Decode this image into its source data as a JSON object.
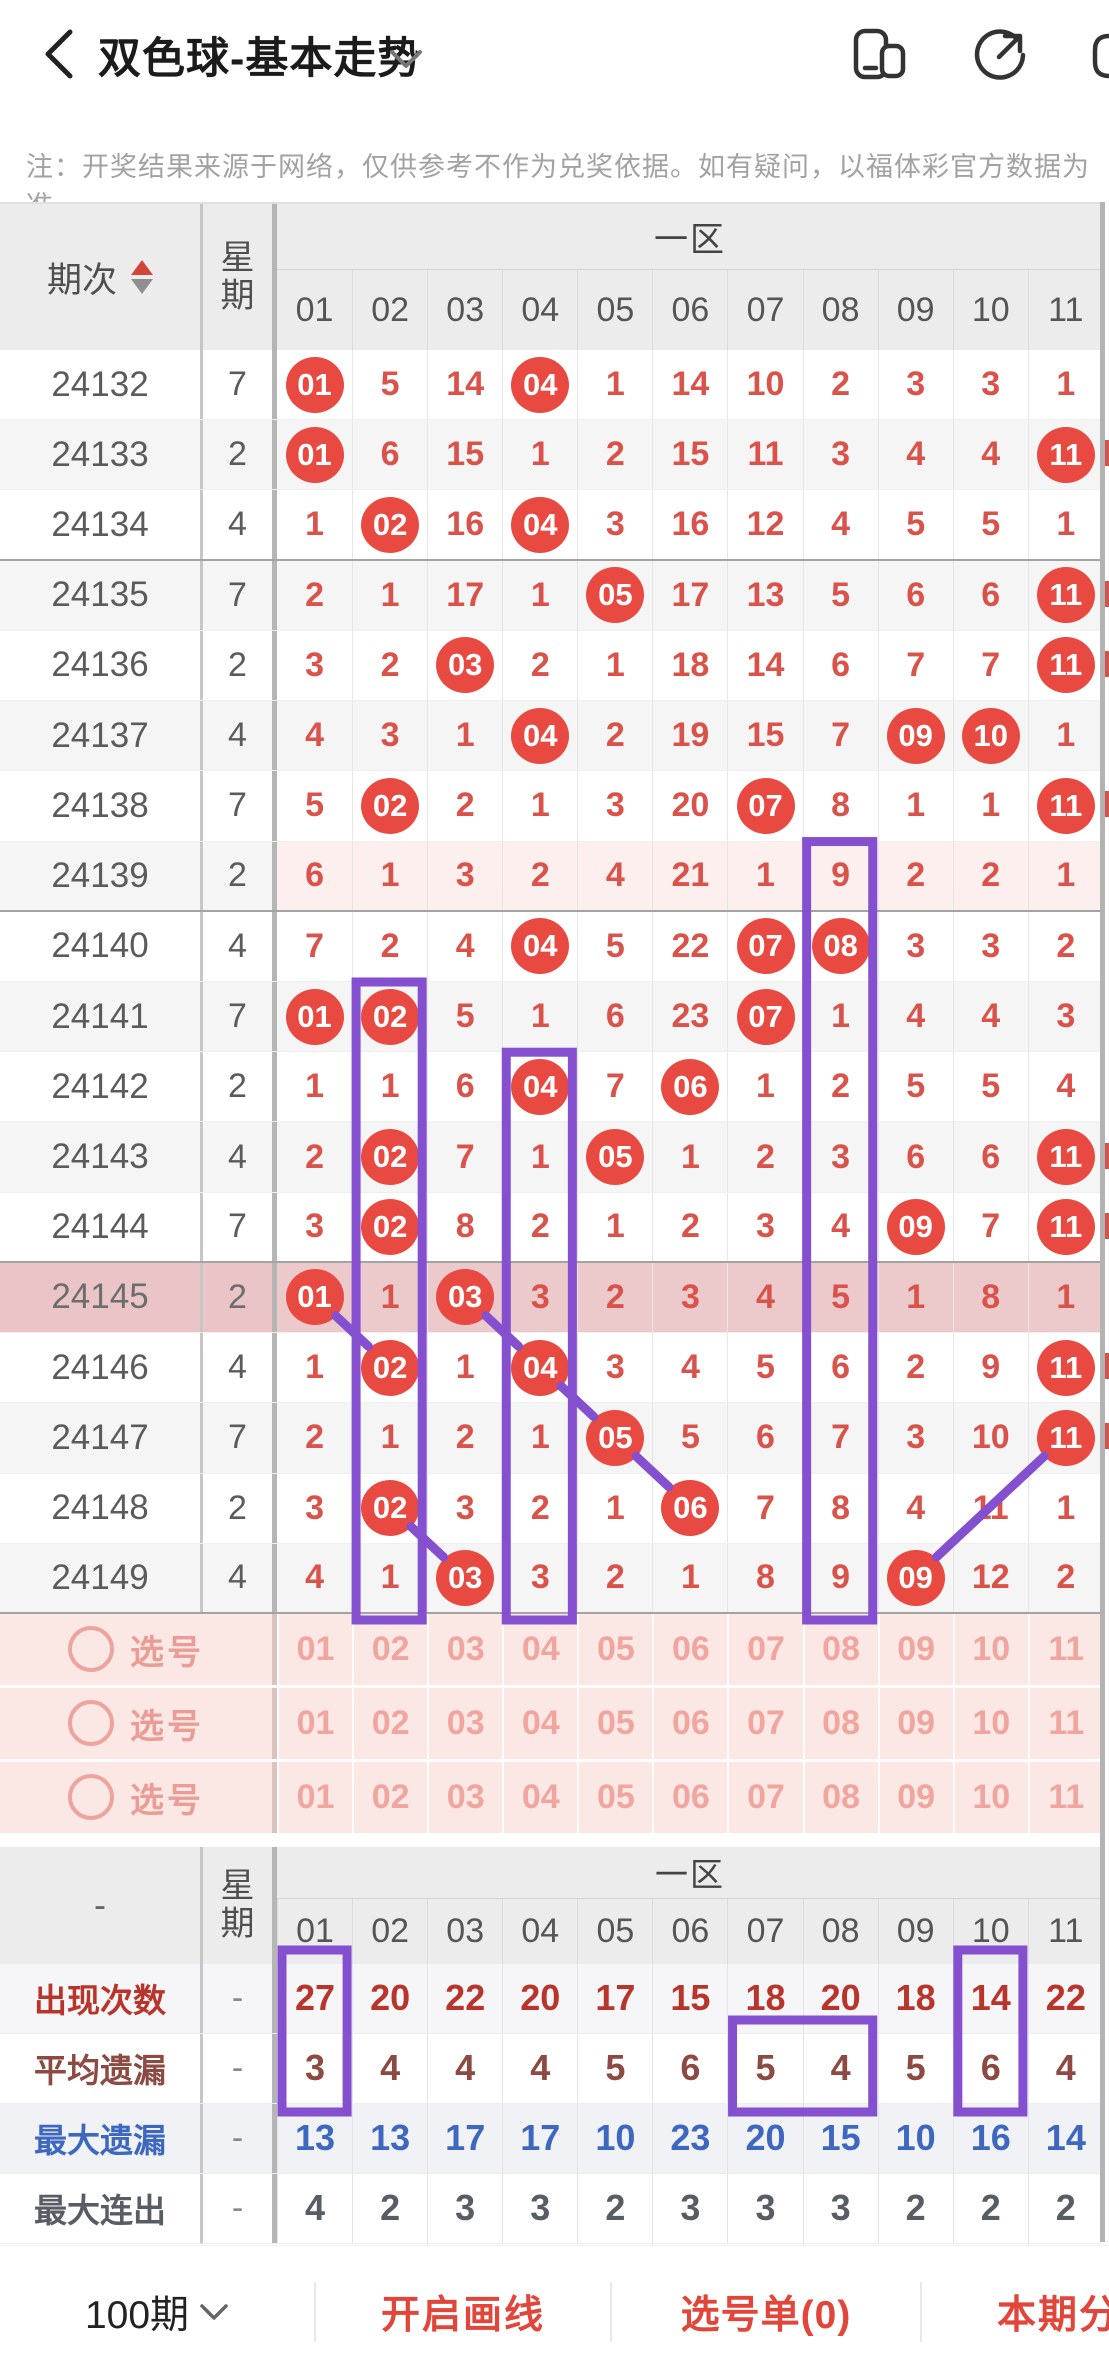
{
  "header": {
    "title": "双色球-基本走势",
    "back_icon": "back-chevron",
    "dropdown_icon": "chevron-down",
    "icons": [
      "floating-window-icon",
      "share-icon",
      "partial-icon"
    ]
  },
  "notice": "注：开奖结果来源于网络，仅供参考不作为兑奖依据。如有疑问，以福体彩官方数据为准。",
  "trend_table": {
    "headers": {
      "period": "期次",
      "week": "星期",
      "zone": "一区"
    },
    "numbers": [
      "01",
      "02",
      "03",
      "04",
      "05",
      "06",
      "07",
      "08",
      "09",
      "10",
      "11"
    ],
    "rows": [
      {
        "period": "24132",
        "week": "7",
        "values": [
          "01",
          "5",
          "14",
          "04",
          "1",
          "14",
          "10",
          "2",
          "3",
          "3",
          "1"
        ],
        "circled": [
          1,
          4
        ],
        "highlight": ""
      },
      {
        "period": "24133",
        "week": "2",
        "values": [
          "01",
          "6",
          "15",
          "1",
          "2",
          "15",
          "11",
          "3",
          "4",
          "4",
          "11"
        ],
        "circled": [
          1,
          11
        ],
        "highlight": ""
      },
      {
        "period": "24134",
        "week": "4",
        "values": [
          "1",
          "02",
          "16",
          "04",
          "3",
          "16",
          "12",
          "4",
          "5",
          "5",
          "1"
        ],
        "circled": [
          2,
          4
        ],
        "highlight": ""
      },
      {
        "period": "24135",
        "week": "7",
        "values": [
          "2",
          "1",
          "17",
          "1",
          "05",
          "17",
          "13",
          "5",
          "6",
          "6",
          "11"
        ],
        "circled": [
          5,
          11
        ],
        "highlight": ""
      },
      {
        "period": "24136",
        "week": "2",
        "values": [
          "3",
          "2",
          "03",
          "2",
          "1",
          "18",
          "14",
          "6",
          "7",
          "7",
          "11"
        ],
        "circled": [
          3,
          11
        ],
        "highlight": ""
      },
      {
        "period": "24137",
        "week": "4",
        "values": [
          "4",
          "3",
          "1",
          "04",
          "2",
          "19",
          "15",
          "7",
          "09",
          "10",
          "1"
        ],
        "circled": [
          4,
          9,
          10
        ],
        "highlight": ""
      },
      {
        "period": "24138",
        "week": "7",
        "values": [
          "5",
          "02",
          "2",
          "1",
          "3",
          "20",
          "07",
          "8",
          "1",
          "1",
          "11"
        ],
        "circled": [
          2,
          7,
          11
        ],
        "highlight": ""
      },
      {
        "period": "24139",
        "week": "2",
        "values": [
          "6",
          "1",
          "3",
          "2",
          "4",
          "21",
          "1",
          "9",
          "2",
          "2",
          "1"
        ],
        "circled": [],
        "highlight": "light"
      },
      {
        "period": "24140",
        "week": "4",
        "values": [
          "7",
          "2",
          "4",
          "04",
          "5",
          "22",
          "07",
          "08",
          "3",
          "3",
          "2"
        ],
        "circled": [
          4,
          7,
          8
        ],
        "highlight": ""
      },
      {
        "period": "24141",
        "week": "7",
        "values": [
          "01",
          "02",
          "5",
          "1",
          "6",
          "23",
          "07",
          "1",
          "4",
          "4",
          "3"
        ],
        "circled": [
          1,
          2,
          7
        ],
        "highlight": ""
      },
      {
        "period": "24142",
        "week": "2",
        "values": [
          "1",
          "1",
          "6",
          "04",
          "7",
          "06",
          "1",
          "2",
          "5",
          "5",
          "4"
        ],
        "circled": [
          4,
          6
        ],
        "highlight": ""
      },
      {
        "period": "24143",
        "week": "4",
        "values": [
          "2",
          "02",
          "7",
          "1",
          "05",
          "1",
          "2",
          "3",
          "6",
          "6",
          "11"
        ],
        "circled": [
          2,
          5,
          11
        ],
        "highlight": ""
      },
      {
        "period": "24144",
        "week": "7",
        "values": [
          "3",
          "02",
          "8",
          "2",
          "1",
          "2",
          "3",
          "4",
          "09",
          "7",
          "11"
        ],
        "circled": [
          2,
          9,
          11
        ],
        "highlight": ""
      },
      {
        "period": "24145",
        "week": "2",
        "values": [
          "01",
          "1",
          "03",
          "3",
          "2",
          "3",
          "4",
          "5",
          "1",
          "8",
          "1"
        ],
        "circled": [
          1,
          3
        ],
        "highlight": "strong"
      },
      {
        "period": "24146",
        "week": "4",
        "values": [
          "1",
          "02",
          "1",
          "04",
          "3",
          "4",
          "5",
          "6",
          "2",
          "9",
          "11"
        ],
        "circled": [
          2,
          4,
          11
        ],
        "highlight": ""
      },
      {
        "period": "24147",
        "week": "7",
        "values": [
          "2",
          "1",
          "2",
          "1",
          "05",
          "5",
          "6",
          "7",
          "3",
          "10",
          "11"
        ],
        "circled": [
          5,
          11
        ],
        "highlight": ""
      },
      {
        "period": "24148",
        "week": "2",
        "values": [
          "3",
          "02",
          "3",
          "2",
          "1",
          "06",
          "7",
          "8",
          "4",
          "11",
          "1"
        ],
        "circled": [
          2,
          6
        ],
        "highlight": ""
      },
      {
        "period": "24149",
        "week": "4",
        "values": [
          "4",
          "1",
          "03",
          "3",
          "2",
          "1",
          "8",
          "9",
          "09",
          "12",
          "2"
        ],
        "circled": [
          3,
          9
        ],
        "highlight": ""
      }
    ],
    "select_rows": [
      {
        "label": "选号",
        "numbers": [
          "01",
          "02",
          "03",
          "04",
          "05",
          "06",
          "07",
          "08",
          "09",
          "10",
          "11"
        ]
      },
      {
        "label": "选号",
        "numbers": [
          "01",
          "02",
          "03",
          "04",
          "05",
          "06",
          "07",
          "08",
          "09",
          "10",
          "11"
        ]
      },
      {
        "label": "选号",
        "numbers": [
          "01",
          "02",
          "03",
          "04",
          "05",
          "06",
          "07",
          "08",
          "09",
          "10",
          "11"
        ]
      }
    ]
  },
  "stats_table": {
    "corner": "-",
    "week_label": "星期",
    "zone": "一区",
    "numbers": [
      "01",
      "02",
      "03",
      "04",
      "05",
      "06",
      "07",
      "08",
      "09",
      "10",
      "11"
    ],
    "rows": [
      {
        "label": "出现次数",
        "week": "-",
        "values": [
          "27",
          "20",
          "22",
          "20",
          "17",
          "15",
          "18",
          "20",
          "18",
          "14",
          "22"
        ],
        "color": "#b8352b",
        "bg": "#f6f6f9"
      },
      {
        "label": "平均遗漏",
        "week": "-",
        "values": [
          "3",
          "4",
          "4",
          "4",
          "5",
          "6",
          "5",
          "4",
          "5",
          "6",
          "4"
        ],
        "color": "#8d4a42",
        "bg": "#ffffff"
      },
      {
        "label": "最大遗漏",
        "week": "-",
        "values": [
          "13",
          "13",
          "17",
          "17",
          "10",
          "23",
          "20",
          "15",
          "10",
          "16",
          "14"
        ],
        "color": "#3e68c0",
        "bg": "#f1f2f6"
      },
      {
        "label": "最大连出",
        "week": "-",
        "values": [
          "4",
          "2",
          "3",
          "3",
          "2",
          "3",
          "3",
          "3",
          "2",
          "2",
          "2"
        ],
        "color": "#585c64",
        "bg": "#ffffff"
      }
    ]
  },
  "annotations": {
    "color": "#8450cf",
    "column_boxes": [
      {
        "column": "02",
        "start_period": "24141"
      },
      {
        "column": "04",
        "start_period": "24142"
      },
      {
        "column": "08",
        "start_period": "24139"
      }
    ],
    "connect_lines": [
      {
        "from_period": "24145",
        "from_col": "01",
        "to_period": "24146",
        "to_col": "02"
      },
      {
        "from_period": "24145",
        "from_col": "03",
        "to_period": "24146",
        "to_col": "04"
      },
      {
        "from_period": "24146",
        "from_col": "04",
        "to_period": "24147",
        "to_col": "05"
      },
      {
        "from_period": "24147",
        "from_col": "05",
        "to_period": "24148",
        "to_col": "06"
      },
      {
        "from_period": "24148",
        "from_col": "02",
        "to_period": "24149",
        "to_col": "03"
      },
      {
        "from_period": "24149",
        "from_col": "09",
        "to_period": "24147",
        "to_col": "11"
      }
    ],
    "stats_boxes": [
      {
        "columns": [
          "01"
        ],
        "rows": [
          "出现次数",
          "平均遗漏"
        ]
      },
      {
        "columns": [
          "10"
        ],
        "rows": [
          "出现次数",
          "平均遗漏"
        ]
      },
      {
        "columns": [
          "07",
          "08"
        ],
        "rows": [
          "平均遗漏"
        ]
      }
    ],
    "edge_mark_periods": [
      "24133",
      "24135",
      "24136",
      "24138",
      "24143",
      "24144",
      "24146",
      "24147"
    ]
  },
  "bottom_bar": {
    "items": [
      {
        "label": "100期",
        "caret": true
      },
      {
        "label": "开启画线",
        "caret": false
      },
      {
        "label": "选号单(0)",
        "caret": false
      },
      {
        "label": "本期分析",
        "caret": false
      }
    ]
  }
}
